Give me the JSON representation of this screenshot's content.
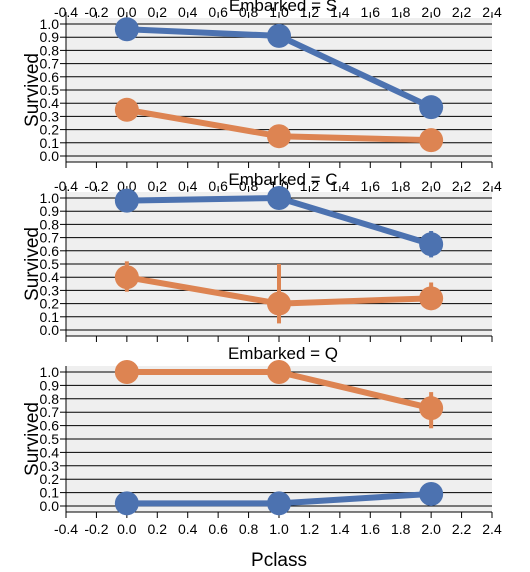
{
  "chart_data": {
    "type": "line",
    "xlabel": "Pclass",
    "ylabel": "Survived",
    "xlim": [
      -0.4,
      2.4
    ],
    "ylim": [
      0.0,
      1.0
    ],
    "xticks": [
      "-0.4",
      "-0.2",
      "0.0",
      "0.2",
      "0.4",
      "0.6",
      "0.8",
      "1.0",
      "1.2",
      "1.4",
      "1.6",
      "1.8",
      "2.0",
      "2.2",
      "2.4"
    ],
    "yticks": [
      "0.0",
      "0.1",
      "0.2",
      "0.3",
      "0.4",
      "0.5",
      "0.6",
      "0.7",
      "0.8",
      "0.9",
      "1.0"
    ],
    "grid": true,
    "colors": {
      "series_a": "#4c72b0",
      "series_b": "#dd8452"
    },
    "panels": [
      {
        "title": "Embarked = S",
        "x": [
          0,
          1,
          2
        ],
        "series": [
          {
            "color_key": "series_a",
            "values": [
              0.96,
              0.91,
              0.37
            ],
            "err_low": [
              0.96,
              0.91,
              0.37
            ],
            "err_high": [
              0.96,
              0.91,
              0.37
            ]
          },
          {
            "color_key": "series_b",
            "values": [
              0.35,
              0.15,
              0.12
            ],
            "err_low": [
              0.35,
              0.15,
              0.12
            ],
            "err_high": [
              0.35,
              0.15,
              0.12
            ]
          }
        ]
      },
      {
        "title": "Embarked = C",
        "x": [
          0,
          1,
          2
        ],
        "series": [
          {
            "color_key": "series_a",
            "values": [
              0.98,
              1.0,
              0.65
            ],
            "err_low": [
              0.98,
              1.0,
              0.55
            ],
            "err_high": [
              0.98,
              1.0,
              0.75
            ]
          },
          {
            "color_key": "series_b",
            "values": [
              0.4,
              0.2,
              0.24
            ],
            "err_low": [
              0.29,
              0.05,
              0.16
            ],
            "err_high": [
              0.52,
              0.5,
              0.36
            ]
          }
        ]
      },
      {
        "title": "Embarked = Q",
        "x": [
          0,
          1,
          2
        ],
        "series": [
          {
            "color_key": "series_a",
            "values": [
              0.02,
              0.02,
              0.09
            ],
            "err_low": [
              0.02,
              0.02,
              0.09
            ],
            "err_high": [
              0.02,
              0.02,
              0.09
            ]
          },
          {
            "color_key": "series_b",
            "values": [
              1.0,
              1.0,
              0.73
            ],
            "err_low": [
              1.0,
              1.0,
              0.58
            ],
            "err_high": [
              1.0,
              1.0,
              0.85
            ]
          }
        ]
      }
    ]
  }
}
